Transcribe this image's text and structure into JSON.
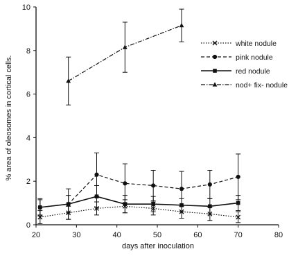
{
  "chart_data": {
    "type": "line",
    "xlabel": "days after inoculation",
    "ylabel": "% area of oleosomes in cortical cells.",
    "xlim": [
      20,
      80
    ],
    "ylim": [
      0,
      10
    ],
    "xticks": [
      20,
      30,
      40,
      50,
      60,
      70,
      80
    ],
    "yticks": [
      0,
      2,
      4,
      6,
      8,
      10
    ],
    "grid": false,
    "legend_position": "top-right",
    "series": [
      {
        "name": "white nodule",
        "marker": "x",
        "dash": "dotted",
        "x": [
          21,
          28,
          35,
          42,
          49,
          56,
          63,
          70
        ],
        "y": [
          0.35,
          0.55,
          0.75,
          0.85,
          0.75,
          0.6,
          0.5,
          0.35
        ],
        "err": [
          0.3,
          0.3,
          0.3,
          0.3,
          0.3,
          0.3,
          0.3,
          0.25
        ]
      },
      {
        "name": "pink nodule",
        "marker": "circle",
        "dash": "dashed",
        "x": [
          21,
          28,
          35,
          42,
          49,
          56,
          63,
          70
        ],
        "y": [
          0.8,
          0.95,
          2.3,
          1.9,
          1.8,
          1.65,
          1.85,
          2.2
        ],
        "err": [
          0.4,
          0.7,
          1.0,
          0.9,
          0.7,
          0.8,
          0.65,
          1.05
        ]
      },
      {
        "name": "red nodule",
        "marker": "square",
        "dash": "solid",
        "x": [
          21,
          28,
          35,
          42,
          49,
          56,
          63,
          70
        ],
        "y": [
          0.8,
          0.95,
          1.3,
          0.95,
          0.95,
          0.9,
          0.85,
          1.0
        ],
        "err": [
          0.35,
          0.4,
          0.5,
          0.4,
          0.35,
          0.3,
          0.35,
          0.35
        ]
      },
      {
        "name": "nod+ fix- nodule",
        "marker": "triangle",
        "dash": "dashdot",
        "x": [
          28,
          42,
          56
        ],
        "y": [
          6.6,
          8.15,
          9.15
        ],
        "err": [
          1.1,
          1.15,
          0.75
        ]
      }
    ]
  }
}
